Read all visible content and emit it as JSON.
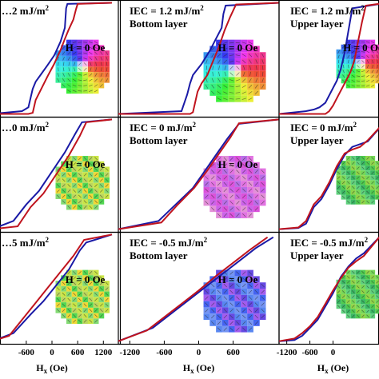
{
  "chart_data": [
    {
      "type": "line",
      "row": 0,
      "col": 0,
      "iec_label": "…2 mJ/m",
      "iec_sup": "2",
      "layer_label": "",
      "field_label": "H = 0 Oe",
      "xlim": [
        -1400,
        1400
      ],
      "ylim": [
        -1.05,
        1.05
      ],
      "vortex": "cone",
      "series": [
        {
          "color": "#1a1aa6",
          "x": [
            -1400,
            -700,
            -550,
            -450,
            -380,
            -250,
            -100,
            50,
            200,
            300,
            330,
            360,
            1400
          ],
          "y": [
            -1.0,
            -0.95,
            -0.88,
            -0.55,
            -0.42,
            -0.28,
            -0.12,
            0.05,
            0.3,
            0.55,
            0.9,
            0.98,
            1.0
          ]
        },
        {
          "color": "#c0141e",
          "x": [
            -1400,
            -550,
            -450,
            -380,
            -250,
            -100,
            50,
            200,
            300,
            380,
            500,
            560,
            600,
            1400
          ],
          "y": [
            -1.0,
            -1.0,
            -0.98,
            -0.75,
            -0.55,
            -0.32,
            -0.1,
            0.15,
            0.35,
            0.5,
            0.7,
            0.88,
            0.98,
            1.0
          ]
        }
      ]
    },
    {
      "type": "line",
      "row": 0,
      "col": 1,
      "iec_label": "IEC = 1.2 mJ/m",
      "iec_sup": "2",
      "layer_label": "Bottom layer",
      "field_label": "H = 0 Oe",
      "xlim": [
        -1400,
        1400
      ],
      "ylim": [
        -1.05,
        1.05
      ],
      "vortex": "cone",
      "series": [
        {
          "color": "#1a1aa6",
          "x": [
            -1400,
            -300,
            -200,
            -150,
            -100,
            50,
            200,
            300,
            400,
            430,
            470,
            1400
          ],
          "y": [
            -1.0,
            -0.95,
            -0.65,
            -0.45,
            -0.3,
            -0.1,
            0.15,
            0.35,
            0.55,
            0.8,
            0.95,
            1.0
          ]
        },
        {
          "color": "#c0141e",
          "x": [
            -1400,
            -150,
            -100,
            -20,
            50,
            150,
            250,
            350,
            450,
            550,
            650,
            1400
          ],
          "y": [
            -1.0,
            -1.0,
            -0.97,
            -0.6,
            -0.45,
            -0.3,
            -0.05,
            0.2,
            0.5,
            0.75,
            0.97,
            1.0
          ]
        }
      ]
    },
    {
      "type": "line",
      "row": 0,
      "col": 2,
      "iec_label": "IEC = 1.2 mJ/m",
      "iec_sup": "2",
      "layer_label": "Upper layer",
      "field_label": "H = 0 Oe",
      "xlim": [
        -1400,
        1400
      ],
      "ylim": [
        -1.05,
        1.05
      ],
      "vortex": "cone",
      "series": [
        {
          "color": "#1a1aa6",
          "x": [
            -1400,
            -700,
            -500,
            -350,
            -200,
            -50,
            100,
            200,
            300,
            400,
            500,
            1400
          ],
          "y": [
            -1.0,
            -0.95,
            -0.92,
            -0.88,
            -0.8,
            -0.6,
            -0.4,
            -0.2,
            0.1,
            0.5,
            0.9,
            1.0
          ]
        },
        {
          "color": "#c0141e",
          "x": [
            -1400,
            -200,
            -100,
            0,
            150,
            300,
            450,
            550,
            650,
            750,
            850,
            1400
          ],
          "y": [
            -1.0,
            -1.0,
            -0.95,
            -0.85,
            -0.65,
            -0.45,
            -0.25,
            -0.05,
            0.3,
            0.65,
            0.95,
            1.0
          ]
        }
      ]
    },
    {
      "type": "line",
      "row": 1,
      "col": 0,
      "iec_label": "…0 mJ/m",
      "iec_sup": "2",
      "layer_label": "",
      "field_label": "H = 0 Oe",
      "xlim": [
        -1400,
        1400
      ],
      "ylim": [
        -1.05,
        1.05
      ],
      "vortex": "grid-yellow",
      "series": [
        {
          "color": "#1a1aa6",
          "x": [
            -1400,
            -900,
            -600,
            -300,
            0,
            300,
            550,
            700,
            1400
          ],
          "y": [
            -1.0,
            -0.85,
            -0.55,
            -0.3,
            0.05,
            0.4,
            0.75,
            0.95,
            1.0
          ]
        },
        {
          "color": "#c0141e",
          "x": [
            -1400,
            -800,
            -500,
            -200,
            100,
            400,
            650,
            800,
            1400
          ],
          "y": [
            -1.0,
            -0.95,
            -0.6,
            -0.35,
            0.0,
            0.35,
            0.7,
            0.95,
            1.0
          ]
        }
      ]
    },
    {
      "type": "line",
      "row": 1,
      "col": 1,
      "iec_label": "IEC = 0 mJ/m",
      "iec_sup": "2",
      "layer_label": "Bottom layer",
      "field_label": "H = 0 Oe",
      "xlim": [
        -1400,
        1400
      ],
      "ylim": [
        -1.05,
        1.05
      ],
      "vortex": "grid-magenta",
      "series": [
        {
          "color": "#1a1aa6",
          "x": [
            -1400,
            -700,
            -400,
            -100,
            100,
            300,
            500,
            700,
            1400
          ],
          "y": [
            -1.0,
            -0.85,
            -0.55,
            -0.25,
            0.05,
            0.35,
            0.65,
            0.92,
            1.0
          ]
        },
        {
          "color": "#c0141e",
          "x": [
            -1400,
            -650,
            -380,
            -80,
            150,
            350,
            550,
            700,
            1400
          ],
          "y": [
            -1.0,
            -0.88,
            -0.57,
            -0.25,
            0.07,
            0.37,
            0.67,
            0.93,
            1.0
          ]
        }
      ]
    },
    {
      "type": "line",
      "row": 1,
      "col": 2,
      "iec_label": "IEC = 0 mJ/m",
      "iec_sup": "2",
      "layer_label": "Upper layer",
      "field_label": "",
      "xlim": [
        -1400,
        1400
      ],
      "ylim": [
        -1.05,
        1.05
      ],
      "vortex": "grid-green",
      "series": [
        {
          "color": "#1a1aa6",
          "x": [
            -1400,
            -900,
            -700,
            -500,
            -300,
            -100,
            100,
            300,
            500,
            700,
            900,
            1400
          ],
          "y": [
            -1.0,
            -0.98,
            -0.9,
            -0.6,
            -0.45,
            -0.2,
            0.1,
            0.35,
            0.5,
            0.55,
            0.6,
            1.0
          ]
        },
        {
          "color": "#c0141e",
          "x": [
            -1400,
            -900,
            -700,
            -500,
            -300,
            -100,
            100,
            300,
            500,
            700,
            900,
            1400
          ],
          "y": [
            -1.0,
            -0.97,
            -0.85,
            -0.55,
            -0.4,
            -0.15,
            0.15,
            0.38,
            0.45,
            0.5,
            0.62,
            1.0
          ]
        }
      ]
    },
    {
      "type": "line",
      "row": 2,
      "col": 0,
      "iec_label": "…5 mJ/m",
      "iec_sup": "2",
      "layer_label": "",
      "field_label": "H = 0 Oe",
      "xlim": [
        -1400,
        1400
      ],
      "ylim": [
        -1.05,
        1.05
      ],
      "vortex": "grid-yellow",
      "series": [
        {
          "color": "#1a1aa6",
          "x": [
            -1400,
            -900,
            -500,
            -200,
            100,
            400,
            650,
            800,
            1400
          ],
          "y": [
            -1.0,
            -0.85,
            -0.5,
            -0.25,
            0.05,
            0.35,
            0.7,
            0.85,
            1.0
          ]
        },
        {
          "color": "#c0141e",
          "x": [
            -1400,
            -1000,
            -700,
            -400,
            -100,
            200,
            500,
            750,
            1400
          ],
          "y": [
            -1.0,
            -0.9,
            -0.6,
            -0.3,
            0.0,
            0.3,
            0.6,
            0.9,
            1.0
          ]
        }
      ]
    },
    {
      "type": "line",
      "row": 2,
      "col": 1,
      "iec_label": "IEC = -0.5 mJ/m",
      "iec_sup": "2",
      "layer_label": "Bottom layer",
      "field_label": "H = 0 Oe",
      "xlim": [
        -1400,
        1400
      ],
      "ylim": [
        -1.05,
        1.05
      ],
      "vortex": "grid-blue",
      "series": [
        {
          "color": "#1a1aa6",
          "x": [
            -1400,
            -800,
            -500,
            -200,
            100,
            400,
            700,
            1000,
            1300
          ],
          "y": [
            -1.0,
            -0.75,
            -0.5,
            -0.25,
            0.0,
            0.25,
            0.5,
            0.75,
            0.95
          ]
        },
        {
          "color": "#c0141e",
          "x": [
            -1400,
            -900,
            -600,
            -300,
            0,
            300,
            600,
            900,
            1200
          ],
          "y": [
            -1.0,
            -0.8,
            -0.55,
            -0.3,
            -0.05,
            0.22,
            0.47,
            0.72,
            0.95
          ]
        }
      ]
    },
    {
      "type": "line",
      "row": 2,
      "col": 2,
      "iec_label": "IEC = -0.5 mJ/m",
      "iec_sup": "2",
      "layer_label": "Upper layer",
      "field_label": "",
      "xlim": [
        -1400,
        1400
      ],
      "ylim": [
        -1.05,
        1.05
      ],
      "vortex": "grid-green",
      "series": [
        {
          "color": "#1a1aa6",
          "x": [
            -1400,
            -1000,
            -800,
            -600,
            -400,
            -200,
            0,
            200,
            400,
            600,
            800,
            1200
          ],
          "y": [
            -1.0,
            -0.98,
            -0.9,
            -0.75,
            -0.6,
            -0.35,
            -0.1,
            0.2,
            0.4,
            0.55,
            0.65,
            0.95
          ]
        },
        {
          "color": "#c0141e",
          "x": [
            -1400,
            -1000,
            -800,
            -600,
            -400,
            -200,
            0,
            200,
            400,
            600,
            800,
            1200
          ],
          "y": [
            -1.0,
            -0.95,
            -0.85,
            -0.72,
            -0.55,
            -0.3,
            -0.05,
            0.18,
            0.38,
            0.5,
            0.6,
            0.95
          ]
        }
      ]
    }
  ],
  "x_ticks": [
    {
      "col": 0,
      "labels": [
        "-600",
        "0",
        "600",
        "1200"
      ],
      "values": [
        -600,
        0,
        600,
        1200
      ]
    },
    {
      "col": 1,
      "labels": [
        "-1200",
        "-600",
        "0",
        "600"
      ],
      "values": [
        -1200,
        -600,
        0,
        600
      ]
    },
    {
      "col": 2,
      "labels": [
        "-1200",
        "-600",
        "0"
      ],
      "values": [
        -1200,
        -600,
        0
      ]
    }
  ],
  "x_axis_label": {
    "main": "H",
    "sub": "x",
    "unit": " (Oe)"
  }
}
